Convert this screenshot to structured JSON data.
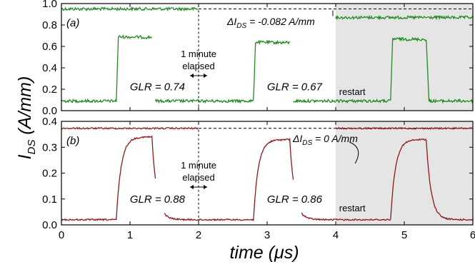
{
  "chart_data": {
    "type": "line",
    "shared_x": {
      "label_main": "time (",
      "label_mu": "μ",
      "label_unit": "s)",
      "lim": [
        0,
        6
      ],
      "ticks": [
        "0",
        "1",
        "2",
        "3",
        "4",
        "5",
        "6"
      ]
    },
    "shared_y": {
      "label_main": "I",
      "label_sub": "DS",
      "label_unit": " (A/mm)"
    },
    "restart_region": [
      4,
      6
    ],
    "panels": [
      {
        "id": "a",
        "label": "(a)",
        "color": "#238A23",
        "ylim": [
          0,
          1.0
        ],
        "yticks": [
          "0.0",
          "0.2",
          "0.4",
          "0.6",
          "0.8",
          "1.0"
        ],
        "ytick_values": [
          0,
          0.2,
          0.4,
          0.6,
          0.8,
          1.0
        ],
        "steady_level": 0.95,
        "restart_level": 0.87,
        "baseline": 0.09,
        "reference_level": 0.95,
        "pulses": [
          {
            "start": 0.8,
            "end": 1.32,
            "high": 0.69
          },
          {
            "start": 2.8,
            "end": 3.33,
            "high": 0.64
          },
          {
            "start": 4.8,
            "end": 5.32,
            "high": 0.67
          }
        ],
        "shape": "square",
        "glr": [
          {
            "text": "GLR = 0.74",
            "x": 1.4,
            "y": 0.19
          },
          {
            "text": "GLR = 0.67",
            "x": 3.4,
            "y": 0.19
          }
        ],
        "elapsed_text": [
          "1 minute",
          "elapsed"
        ],
        "delta_prefix": "ΔI",
        "delta_sub": "DS",
        "delta_value": " = -0.082 A/mm",
        "restart_text": "restart"
      },
      {
        "id": "b",
        "label": "(b)",
        "color": "#8B1A1A",
        "ylim": [
          0,
          0.4
        ],
        "yticks": [
          "0.0",
          "0.1",
          "0.2",
          "0.3",
          "0.4"
        ],
        "ytick_values": [
          0,
          0.1,
          0.2,
          0.3,
          0.4
        ],
        "steady_level": 0.373,
        "restart_level": 0.373,
        "baseline": 0.02,
        "reference_level": 0.373,
        "pulses": [
          {
            "start": 0.8,
            "end": 1.32,
            "high": 0.34
          },
          {
            "start": 2.8,
            "end": 3.33,
            "high": 0.33
          },
          {
            "start": 4.8,
            "end": 5.32,
            "high": 0.33
          }
        ],
        "shape": "rc",
        "glr": [
          {
            "text": "GLR = 0.88",
            "x": 1.4,
            "y": 0.085
          },
          {
            "text": "GLR = 0.86",
            "x": 3.4,
            "y": 0.085
          }
        ],
        "elapsed_text": [
          "1 minute",
          "elapsed"
        ],
        "delta_prefix": "ΔI",
        "delta_sub": "DS",
        "delta_value": " = 0 A/mm",
        "restart_text": "restart"
      }
    ]
  }
}
